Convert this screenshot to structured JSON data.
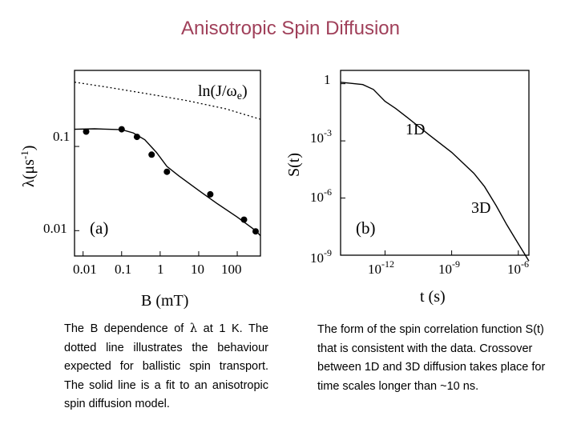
{
  "title": "Anisotropic Spin Diffusion",
  "left_caption": {
    "before": "The B dependence of ",
    "lambda": "λ",
    "after": " at 1 K.  The dotted line illustrates the behaviour expected for ballistic spin transport. The solid line is a fit to an anisotropic spin diffusion model."
  },
  "right_caption": "The form of the spin correlation function S(t) that is consistent with the data. Crossover between 1D and 3D diffusion takes place for time scales longer than ~10 ns.",
  "chart_data": [
    {
      "type": "scatter",
      "panel_label": "(a)",
      "xlabel": "B (mT)",
      "ylabel": "λ(μs⁻¹)",
      "x_scale": "log",
      "y_scale": "log",
      "xlim": [
        0.006,
        400
      ],
      "ylim": [
        0.005,
        0.8
      ],
      "x_ticks": [
        "0.01",
        "0.1",
        "1",
        "10",
        "100"
      ],
      "y_ticks": [
        "0.1",
        "0.01"
      ],
      "annotation": "ln(J/ωe)",
      "series": [
        {
          "style": "markers",
          "x": [
            0.012,
            0.1,
            0.25,
            0.6,
            1.5,
            20,
            150,
            300
          ],
          "y": [
            0.15,
            0.16,
            0.13,
            0.08,
            0.05,
            0.027,
            0.0135,
            0.0098
          ]
        },
        {
          "style": "solid",
          "x": [
            0.006,
            0.02,
            0.1,
            0.2,
            0.4,
            0.8,
            1.5,
            3,
            10,
            30,
            100,
            300,
            400
          ],
          "y": [
            0.16,
            0.162,
            0.158,
            0.145,
            0.12,
            0.085,
            0.058,
            0.045,
            0.03,
            0.021,
            0.0145,
            0.01,
            0.0087
          ]
        },
        {
          "style": "dotted",
          "x": [
            0.006,
            0.05,
            0.5,
            5,
            50,
            400
          ],
          "y": [
            0.58,
            0.5,
            0.42,
            0.35,
            0.28,
            0.21
          ]
        }
      ]
    },
    {
      "type": "line",
      "panel_label": "(b)",
      "xlabel": "t (s)",
      "ylabel": "S(t)",
      "x_scale": "log",
      "y_scale": "log",
      "xlim": [
        1e-14,
        3e-06
      ],
      "ylim": [
        1e-09,
        5
      ],
      "x_ticks": [
        "10^-12",
        "10^-9",
        "10^-6"
      ],
      "y_ticks": [
        "1",
        "10^-3",
        "10^-6",
        "10^-9"
      ],
      "annotations": [
        "1D",
        "3D"
      ],
      "series": [
        {
          "style": "solid",
          "x": [
            1e-14,
            1e-13,
            3e-13,
            1e-12,
            3e-12,
            1e-11,
            1e-10,
            1e-09,
            1e-08,
            3e-08,
            1e-07,
            3e-07,
            1e-06,
            3e-06
          ],
          "y": [
            1.2,
            0.9,
            0.5,
            0.12,
            0.05,
            0.017,
            0.002,
            0.00025,
            2e-05,
            4e-06,
            4e-07,
            4e-08,
            4e-09,
            5e-10
          ]
        }
      ]
    }
  ]
}
